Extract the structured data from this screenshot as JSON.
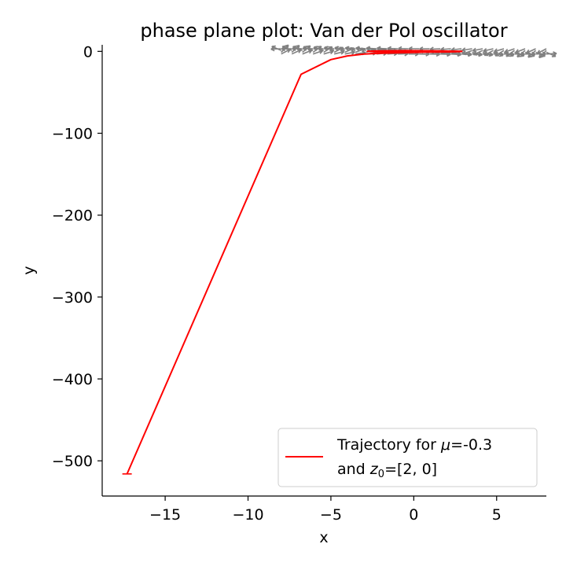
{
  "chart_data": {
    "type": "line",
    "title": "phase plane plot: Van der Pol oscillator",
    "xlabel": "x",
    "ylabel": "y",
    "xlim": [
      -18.8,
      8.0
    ],
    "ylim": [
      -543,
      8
    ],
    "xticks": [
      -15,
      -10,
      -5,
      0,
      5
    ],
    "xtick_labels": [
      "−15",
      "−10",
      "−5",
      "0",
      "5"
    ],
    "yticks": [
      0,
      -100,
      -200,
      -300,
      -400,
      -500
    ],
    "ytick_labels": [
      "0",
      "−100",
      "−200",
      "−300",
      "−400",
      "−500"
    ],
    "colors": {
      "trajectory": "#ff0000",
      "vector_field": "#808080"
    },
    "grid": false,
    "legend_position": "lower-right",
    "legend": {
      "line1_prefix": "Trajectory for ",
      "line1_symbol": "μ",
      "line1_suffix": "=-0.3",
      "line2_prefix": "and ",
      "line2_symbol": "z",
      "line2_subscript": "0",
      "line2_suffix": "=[2, 0]"
    },
    "vector_field": {
      "x_range": [
        -8,
        8
      ],
      "y_range": [
        -0.5,
        0.5
      ],
      "rows": 4,
      "cols": 26
    },
    "series": [
      {
        "x": [
          2.0,
          2.6,
          2.9,
          2.8,
          2.2,
          1.2,
          0.0,
          -1.2,
          -2.2,
          -2.8,
          -2.4,
          -1.5,
          -0.5,
          0.3,
          1.5,
          2.6,
          2.8,
          2.0,
          1.0,
          0.0,
          -1.0,
          -2.0,
          -3.0,
          -4.0,
          -5.0,
          -6.8,
          -17.3
        ],
        "y": [
          0.0,
          0.2,
          0.0,
          -0.3,
          -0.6,
          -0.9,
          -1.0,
          -0.9,
          -0.5,
          0.0,
          0.4,
          0.7,
          0.9,
          0.8,
          0.5,
          0.1,
          -0.3,
          -0.6,
          -0.8,
          -1.3,
          -1.8,
          -2.3,
          -3.2,
          -5.5,
          -10.0,
          -28.0,
          -516.0
        ]
      }
    ]
  }
}
